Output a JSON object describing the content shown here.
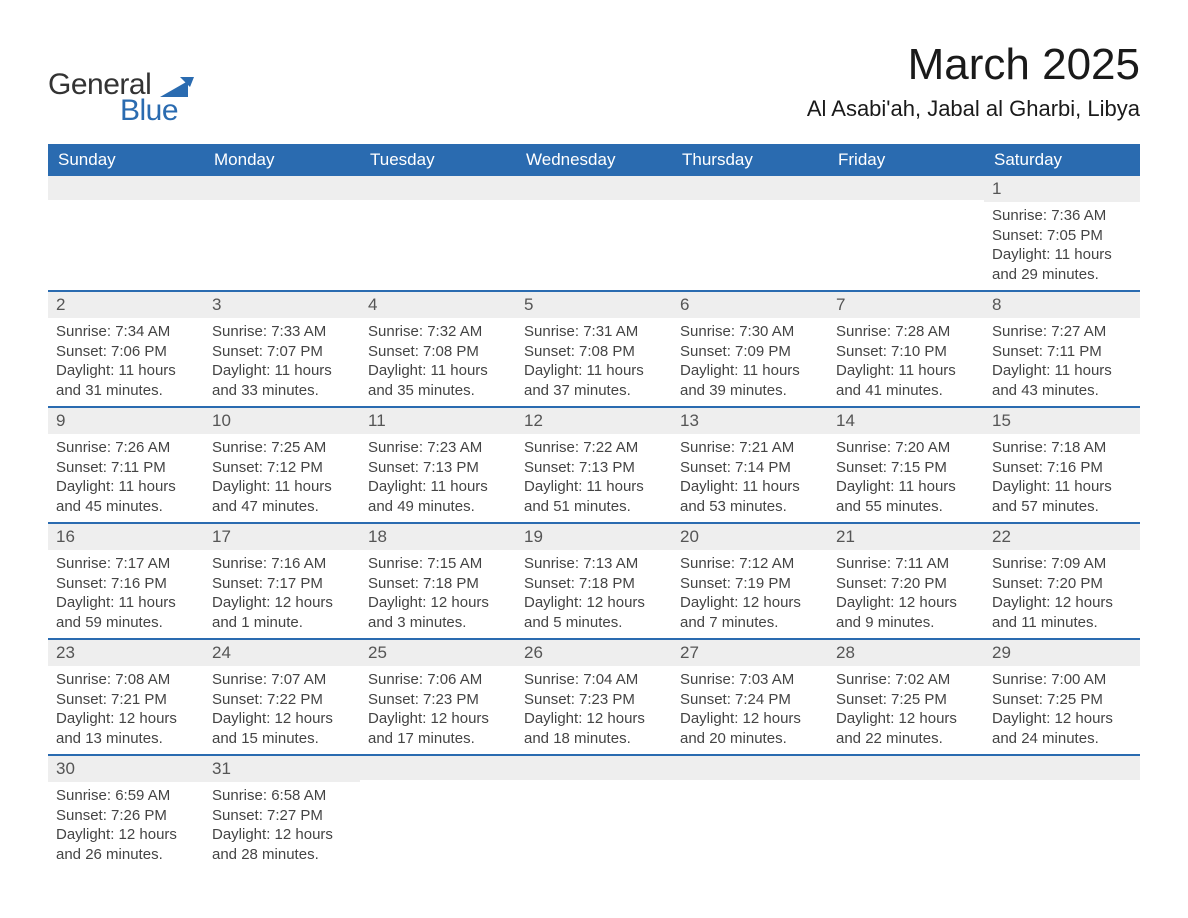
{
  "brand": {
    "name_top": "General",
    "name_bottom": "Blue"
  },
  "title": "March 2025",
  "location": "Al Asabi'ah, Jabal al Gharbi, Libya",
  "colors": {
    "header_bg": "#2a6bb0",
    "header_text": "#ffffff",
    "daynum_bg": "#eeeeee",
    "row_border": "#2a6bb0",
    "body_text": "#444444",
    "brand_blue": "#2a6bb0",
    "page_bg": "#ffffff"
  },
  "typography": {
    "title_fontsize": 44,
    "location_fontsize": 22,
    "header_fontsize": 17,
    "daynum_fontsize": 17,
    "detail_fontsize": 15,
    "family": "Arial"
  },
  "weekdays": [
    "Sunday",
    "Monday",
    "Tuesday",
    "Wednesday",
    "Thursday",
    "Friday",
    "Saturday"
  ],
  "labels": {
    "sunrise": "Sunrise:",
    "sunset": "Sunset:",
    "daylight": "Daylight:"
  },
  "weeks": [
    [
      null,
      null,
      null,
      null,
      null,
      null,
      {
        "n": "1",
        "sunrise": "7:36 AM",
        "sunset": "7:05 PM",
        "daylight": "11 hours and 29 minutes."
      }
    ],
    [
      {
        "n": "2",
        "sunrise": "7:34 AM",
        "sunset": "7:06 PM",
        "daylight": "11 hours and 31 minutes."
      },
      {
        "n": "3",
        "sunrise": "7:33 AM",
        "sunset": "7:07 PM",
        "daylight": "11 hours and 33 minutes."
      },
      {
        "n": "4",
        "sunrise": "7:32 AM",
        "sunset": "7:08 PM",
        "daylight": "11 hours and 35 minutes."
      },
      {
        "n": "5",
        "sunrise": "7:31 AM",
        "sunset": "7:08 PM",
        "daylight": "11 hours and 37 minutes."
      },
      {
        "n": "6",
        "sunrise": "7:30 AM",
        "sunset": "7:09 PM",
        "daylight": "11 hours and 39 minutes."
      },
      {
        "n": "7",
        "sunrise": "7:28 AM",
        "sunset": "7:10 PM",
        "daylight": "11 hours and 41 minutes."
      },
      {
        "n": "8",
        "sunrise": "7:27 AM",
        "sunset": "7:11 PM",
        "daylight": "11 hours and 43 minutes."
      }
    ],
    [
      {
        "n": "9",
        "sunrise": "7:26 AM",
        "sunset": "7:11 PM",
        "daylight": "11 hours and 45 minutes."
      },
      {
        "n": "10",
        "sunrise": "7:25 AM",
        "sunset": "7:12 PM",
        "daylight": "11 hours and 47 minutes."
      },
      {
        "n": "11",
        "sunrise": "7:23 AM",
        "sunset": "7:13 PM",
        "daylight": "11 hours and 49 minutes."
      },
      {
        "n": "12",
        "sunrise": "7:22 AM",
        "sunset": "7:13 PM",
        "daylight": "11 hours and 51 minutes."
      },
      {
        "n": "13",
        "sunrise": "7:21 AM",
        "sunset": "7:14 PM",
        "daylight": "11 hours and 53 minutes."
      },
      {
        "n": "14",
        "sunrise": "7:20 AM",
        "sunset": "7:15 PM",
        "daylight": "11 hours and 55 minutes."
      },
      {
        "n": "15",
        "sunrise": "7:18 AM",
        "sunset": "7:16 PM",
        "daylight": "11 hours and 57 minutes."
      }
    ],
    [
      {
        "n": "16",
        "sunrise": "7:17 AM",
        "sunset": "7:16 PM",
        "daylight": "11 hours and 59 minutes."
      },
      {
        "n": "17",
        "sunrise": "7:16 AM",
        "sunset": "7:17 PM",
        "daylight": "12 hours and 1 minute."
      },
      {
        "n": "18",
        "sunrise": "7:15 AM",
        "sunset": "7:18 PM",
        "daylight": "12 hours and 3 minutes."
      },
      {
        "n": "19",
        "sunrise": "7:13 AM",
        "sunset": "7:18 PM",
        "daylight": "12 hours and 5 minutes."
      },
      {
        "n": "20",
        "sunrise": "7:12 AM",
        "sunset": "7:19 PM",
        "daylight": "12 hours and 7 minutes."
      },
      {
        "n": "21",
        "sunrise": "7:11 AM",
        "sunset": "7:20 PM",
        "daylight": "12 hours and 9 minutes."
      },
      {
        "n": "22",
        "sunrise": "7:09 AM",
        "sunset": "7:20 PM",
        "daylight": "12 hours and 11 minutes."
      }
    ],
    [
      {
        "n": "23",
        "sunrise": "7:08 AM",
        "sunset": "7:21 PM",
        "daylight": "12 hours and 13 minutes."
      },
      {
        "n": "24",
        "sunrise": "7:07 AM",
        "sunset": "7:22 PM",
        "daylight": "12 hours and 15 minutes."
      },
      {
        "n": "25",
        "sunrise": "7:06 AM",
        "sunset": "7:23 PM",
        "daylight": "12 hours and 17 minutes."
      },
      {
        "n": "26",
        "sunrise": "7:04 AM",
        "sunset": "7:23 PM",
        "daylight": "12 hours and 18 minutes."
      },
      {
        "n": "27",
        "sunrise": "7:03 AM",
        "sunset": "7:24 PM",
        "daylight": "12 hours and 20 minutes."
      },
      {
        "n": "28",
        "sunrise": "7:02 AM",
        "sunset": "7:25 PM",
        "daylight": "12 hours and 22 minutes."
      },
      {
        "n": "29",
        "sunrise": "7:00 AM",
        "sunset": "7:25 PM",
        "daylight": "12 hours and 24 minutes."
      }
    ],
    [
      {
        "n": "30",
        "sunrise": "6:59 AM",
        "sunset": "7:26 PM",
        "daylight": "12 hours and 26 minutes."
      },
      {
        "n": "31",
        "sunrise": "6:58 AM",
        "sunset": "7:27 PM",
        "daylight": "12 hours and 28 minutes."
      },
      null,
      null,
      null,
      null,
      null
    ]
  ]
}
